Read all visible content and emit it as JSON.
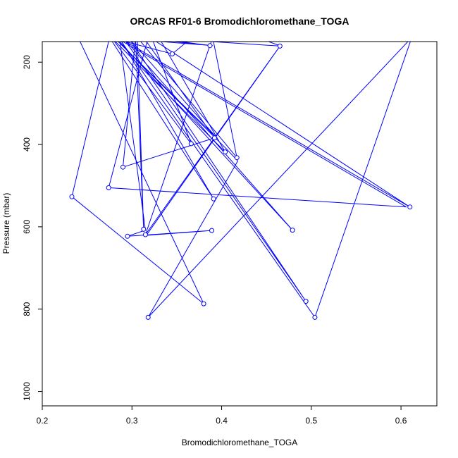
{
  "chart_data": {
    "type": "line",
    "title": "ORCAS RF01-6 Bromodichloromethane_TOGA",
    "xlabel": "Bromodichloromethane_TOGA",
    "ylabel": "Pressure (mbar)",
    "xlim": [
      0.2,
      0.64
    ],
    "ylim": [
      1035,
      150
    ],
    "y_reversed": true,
    "x_ticks": [
      "0.2",
      "0.3",
      "0.4",
      "0.5",
      "0.6"
    ],
    "x_tick_values": [
      0.2,
      0.3,
      0.4,
      0.5,
      0.6
    ],
    "y_ticks": [
      "200",
      "400",
      "600",
      "800",
      "1000"
    ],
    "y_tick_values": [
      200,
      400,
      600,
      800,
      1000
    ],
    "line_color": "#0000ff",
    "series": [
      {
        "x": [
          0.24,
          0.38,
          0.233,
          0.275,
          0.345,
          0.367,
          0.34,
          0.304,
          0.313,
          0.306,
          0.417,
          0.39,
          0.315,
          0.465,
          0.316,
          0.389,
          0.295,
          0.315,
          0.286,
          0.391,
          0.275,
          0.39,
          0.304,
          0.29,
          0.392,
          0.313,
          0.33,
          0.404,
          0.277,
          0.366,
          0.322,
          0.387,
          0.32,
          0.61,
          0.285,
          0.504,
          0.612,
          0.318,
          0.418,
          0.405,
          0.28,
          0.395,
          0.296,
          0.494,
          0.29,
          0.479,
          0.282,
          0.606,
          0.274,
          0.318,
          0.466,
          0.44
        ],
        "y": [
          140,
          787,
          527,
          140,
          180,
          140,
          140,
          140,
          606,
          140,
          432,
          140,
          619,
          161,
          621,
          609,
          623,
          608,
          140,
          532,
          140,
          160,
          140,
          455,
          384,
          140,
          140,
          418,
          140,
          398,
          140,
          160,
          140,
          552,
          140,
          820,
          140,
          820,
          440,
          410,
          140,
          385,
          140,
          781,
          140,
          608,
          140,
          552,
          505,
          140,
          161,
          140
        ]
      }
    ],
    "markers": [
      {
        "x": 0.38,
        "y": 787
      },
      {
        "x": 0.233,
        "y": 527
      },
      {
        "x": 0.345,
        "y": 180
      },
      {
        "x": 0.417,
        "y": 432
      },
      {
        "x": 0.313,
        "y": 606
      },
      {
        "x": 0.315,
        "y": 619
      },
      {
        "x": 0.465,
        "y": 161
      },
      {
        "x": 0.389,
        "y": 609
      },
      {
        "x": 0.295,
        "y": 623
      },
      {
        "x": 0.391,
        "y": 532
      },
      {
        "x": 0.387,
        "y": 160
      },
      {
        "x": 0.29,
        "y": 455
      },
      {
        "x": 0.392,
        "y": 384
      },
      {
        "x": 0.404,
        "y": 418
      },
      {
        "x": 0.366,
        "y": 398
      },
      {
        "x": 0.61,
        "y": 552
      },
      {
        "x": 0.504,
        "y": 820
      },
      {
        "x": 0.318,
        "y": 820
      },
      {
        "x": 0.494,
        "y": 781
      },
      {
        "x": 0.479,
        "y": 608
      },
      {
        "x": 0.274,
        "y": 505
      }
    ]
  }
}
